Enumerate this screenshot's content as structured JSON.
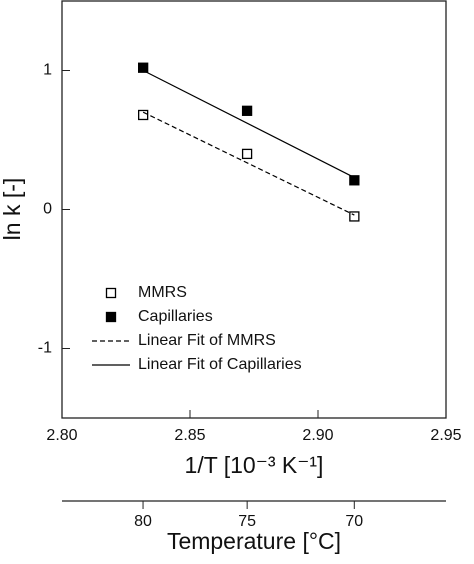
{
  "chart_data": {
    "type": "scatter",
    "xlabel": "1/T [10⁻³ K⁻¹]",
    "ylabel": "ln k [-]",
    "x2label": "Temperature [°C]",
    "xlim": [
      2.8,
      2.95
    ],
    "xticks": [
      {
        "value": 2.8,
        "label": "2.80"
      },
      2.85,
      {
        "value": 2.9,
        "label": "2.90"
      },
      2.95
    ],
    "ylim": [
      -1.5,
      1.5
    ],
    "yticks": [
      -1,
      0,
      1
    ],
    "x2ticks": [
      80,
      75,
      70
    ],
    "x2_scale": "1000/(T+273.15)",
    "legend": "lower left",
    "series": [
      {
        "name": "MMRS",
        "color": "#000000",
        "marker": "open-square",
        "x": [
          2.8317,
          2.8723,
          2.9142
        ],
        "values": [
          0.68,
          0.4,
          -0.05
        ]
      },
      {
        "name": "Capillaries",
        "color": "#000000",
        "marker": "filled-square",
        "x": [
          2.8317,
          2.8723,
          2.9142
        ],
        "values": [
          1.02,
          0.71,
          0.21
        ]
      },
      {
        "name": "Linear Fit of MMRS",
        "color": "#000000",
        "line": "dashed",
        "x": [
          2.8317,
          2.9142
        ],
        "values": [
          0.7,
          -0.04
        ]
      },
      {
        "name": "Linear Fit of Capillaries",
        "color": "#000000",
        "line": "solid",
        "x": [
          2.8317,
          2.9142
        ],
        "values": [
          1.0,
          0.23
        ]
      }
    ]
  }
}
